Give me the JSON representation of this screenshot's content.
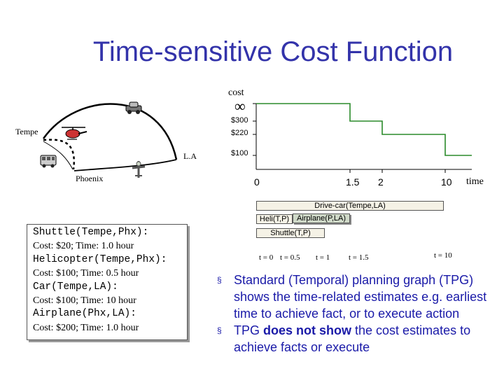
{
  "title": "Time-sensitive Cost Function",
  "map": {
    "tempe": "Tempe",
    "la": "L.A",
    "phoenix": "Phoenix"
  },
  "chart_data": {
    "type": "line",
    "ylabel": "cost",
    "xlabel": "time",
    "y_infinity_label": "∞",
    "y_tick_labels": [
      "$300",
      "$220",
      "$100"
    ],
    "x_tick_labels": [
      "0",
      "1.5",
      "2",
      "10"
    ],
    "series": [
      {
        "x": [
          0,
          1.5,
          1.5,
          2,
          2,
          10,
          10,
          11
        ],
        "y": [
          "∞",
          "∞",
          "$300",
          "$300",
          "$220",
          "$220",
          "$100",
          "$100"
        ]
      }
    ]
  },
  "timeline": {
    "actions": [
      "Drive-car(Tempe,LA)",
      "Heli(T,P)",
      "Airplane(P,LA)",
      "Shuttle(T,P)"
    ],
    "ticks": [
      "t = 0",
      "t = 0.5",
      "t = 1",
      "t = 1.5",
      "t = 10"
    ]
  },
  "costbox": [
    {
      "name": "Shuttle(Tempe,Phx):",
      "detail": "Cost: $20; Time: 1.0 hour"
    },
    {
      "name": "Helicopter(Tempe,Phx):",
      "detail": "Cost: $100; Time: 0.5 hour"
    },
    {
      "name": "Car(Tempe,LA):",
      "detail": "Cost: $100; Time: 10 hour"
    },
    {
      "name": "Airplane(Phx,LA):",
      "detail": "Cost: $200; Time: 1.0 hour"
    }
  ],
  "bullets": [
    "Standard (Temporal) planning graph (TPG) shows the time-related estimates e.g. earliest time to achieve fact, or to execute action",
    {
      "before": "TPG ",
      "bold": "does not show",
      "after": " the cost estimates to achieve facts or execute"
    }
  ],
  "colors": {
    "title": "#3333aa",
    "step_line": "#2a8a2a",
    "bullet_text": "#1a1aa8",
    "bar_fill": "#f5f2e6",
    "airplane_fill": "#cfd9c8"
  }
}
